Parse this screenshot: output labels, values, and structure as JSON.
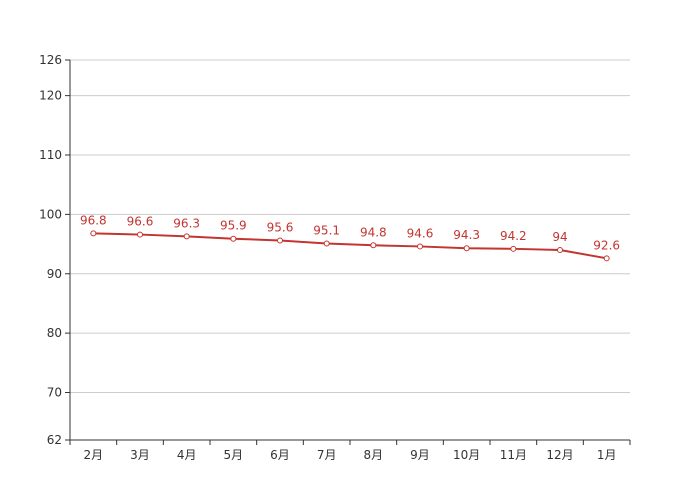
{
  "chart_data": {
    "type": "line",
    "categories": [
      "2月",
      "3月",
      "4月",
      "5月",
      "6月",
      "7月",
      "8月",
      "9月",
      "10月",
      "11月",
      "12月",
      "1月"
    ],
    "series": [
      {
        "values": [
          96.8,
          96.6,
          96.3,
          95.9,
          95.6,
          95.1,
          94.8,
          94.6,
          94.3,
          94.2,
          94,
          92.6
        ]
      }
    ],
    "ylim": [
      62,
      126
    ],
    "yticks": [
      62,
      70,
      80,
      90,
      100,
      110,
      120,
      126
    ],
    "grid": true,
    "line_color": "#c23531",
    "grid_color": "#cccccc",
    "axis_color": "#333333",
    "title": "",
    "xlabel": "",
    "ylabel": ""
  }
}
